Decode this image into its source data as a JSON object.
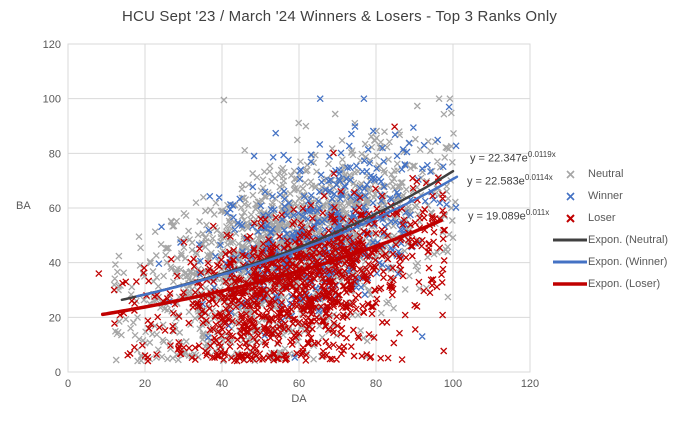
{
  "chart": {
    "title": "HCU Sept '23 / March '24 Winners & Losers - Top 3 Ranks Only"
  },
  "chart_data": {
    "type": "scatter",
    "title": "HCU Sept '23 / March '24 Winners & Losers - Top 3 Ranks Only",
    "xlabel": "DA",
    "ylabel": "BA",
    "xlim": [
      0,
      120
    ],
    "ylim": [
      0,
      120
    ],
    "xticks": [
      0,
      20,
      40,
      60,
      80,
      100,
      120
    ],
    "yticks": [
      0,
      20,
      40,
      60,
      80,
      100,
      120
    ],
    "grid": true,
    "legend_position": "right",
    "colors": {
      "gridline": "#d9d9d9",
      "axis_text": "#595959",
      "title_text": "#404040",
      "equation_text": "#404040"
    },
    "series": [
      {
        "name": "Neutral",
        "marker": "x",
        "color": "#a6a6a6",
        "count": 1500,
        "seed": 101,
        "x_mean": 58,
        "x_sd": 19,
        "x_range": [
          12,
          101
        ],
        "y_offset": 0,
        "y_spread": 16,
        "skew_up": 0.95,
        "skew_down": 1.05,
        "extra_points": [
          [
            40.5,
            99.5
          ],
          [
            18,
            8
          ],
          [
            19,
            6
          ],
          [
            18.5,
            12
          ]
        ]
      },
      {
        "name": "Winner",
        "marker": "x",
        "color": "#4472c4",
        "count": 430,
        "seed": 202,
        "x_mean": 65,
        "x_sd": 15,
        "x_range": [
          22,
          101
        ],
        "y_offset": 3,
        "y_spread": 15,
        "skew_up": 1.0,
        "skew_down": 0.9,
        "extra_points": [
          [
            99,
            97
          ],
          [
            92,
            13
          ]
        ]
      },
      {
        "name": "Loser",
        "marker": "x",
        "color": "#c00000",
        "count": 1050,
        "seed": 303,
        "x_mean": 59,
        "x_sd": 17,
        "x_range": [
          9,
          98
        ],
        "y_offset": -4,
        "y_spread": 16,
        "skew_up": 0.72,
        "skew_down": 1.05,
        "extra_points": [
          [
            8,
            36
          ],
          [
            12,
            30
          ],
          [
            15,
            33
          ],
          [
            20,
            6
          ]
        ]
      }
    ],
    "trendlines": [
      {
        "name": "Expon. (Neutral)",
        "color": "#404040",
        "line_width": 2.5,
        "a": 22.347,
        "b": 0.0119,
        "x_range": [
          14,
          100
        ],
        "label_base": "y = 22.347e",
        "label_exp": "0.0119x"
      },
      {
        "name": "Expon. (Winner)",
        "color": "#4472c4",
        "line_width": 2.5,
        "a": 22.583,
        "b": 0.0114,
        "x_range": [
          18,
          101
        ],
        "label_base": "y = 22.583e",
        "label_exp": "0.0114x"
      },
      {
        "name": "Expon. (Loser)",
        "color": "#c00000",
        "line_width": 3.5,
        "a": 19.089,
        "b": 0.011,
        "x_range": [
          9,
          97
        ],
        "label_base": "y = 19.089e",
        "label_exp": "0.011x"
      }
    ],
    "legend": {
      "items": [
        {
          "label": "Neutral",
          "type": "marker"
        },
        {
          "label": "Winner",
          "type": "marker"
        },
        {
          "label": "Loser",
          "type": "marker"
        },
        {
          "label": "Expon. (Neutral)",
          "type": "line"
        },
        {
          "label": "Expon. (Winner)",
          "type": "line"
        },
        {
          "label": "Expon. (Loser)",
          "type": "line"
        }
      ]
    }
  }
}
